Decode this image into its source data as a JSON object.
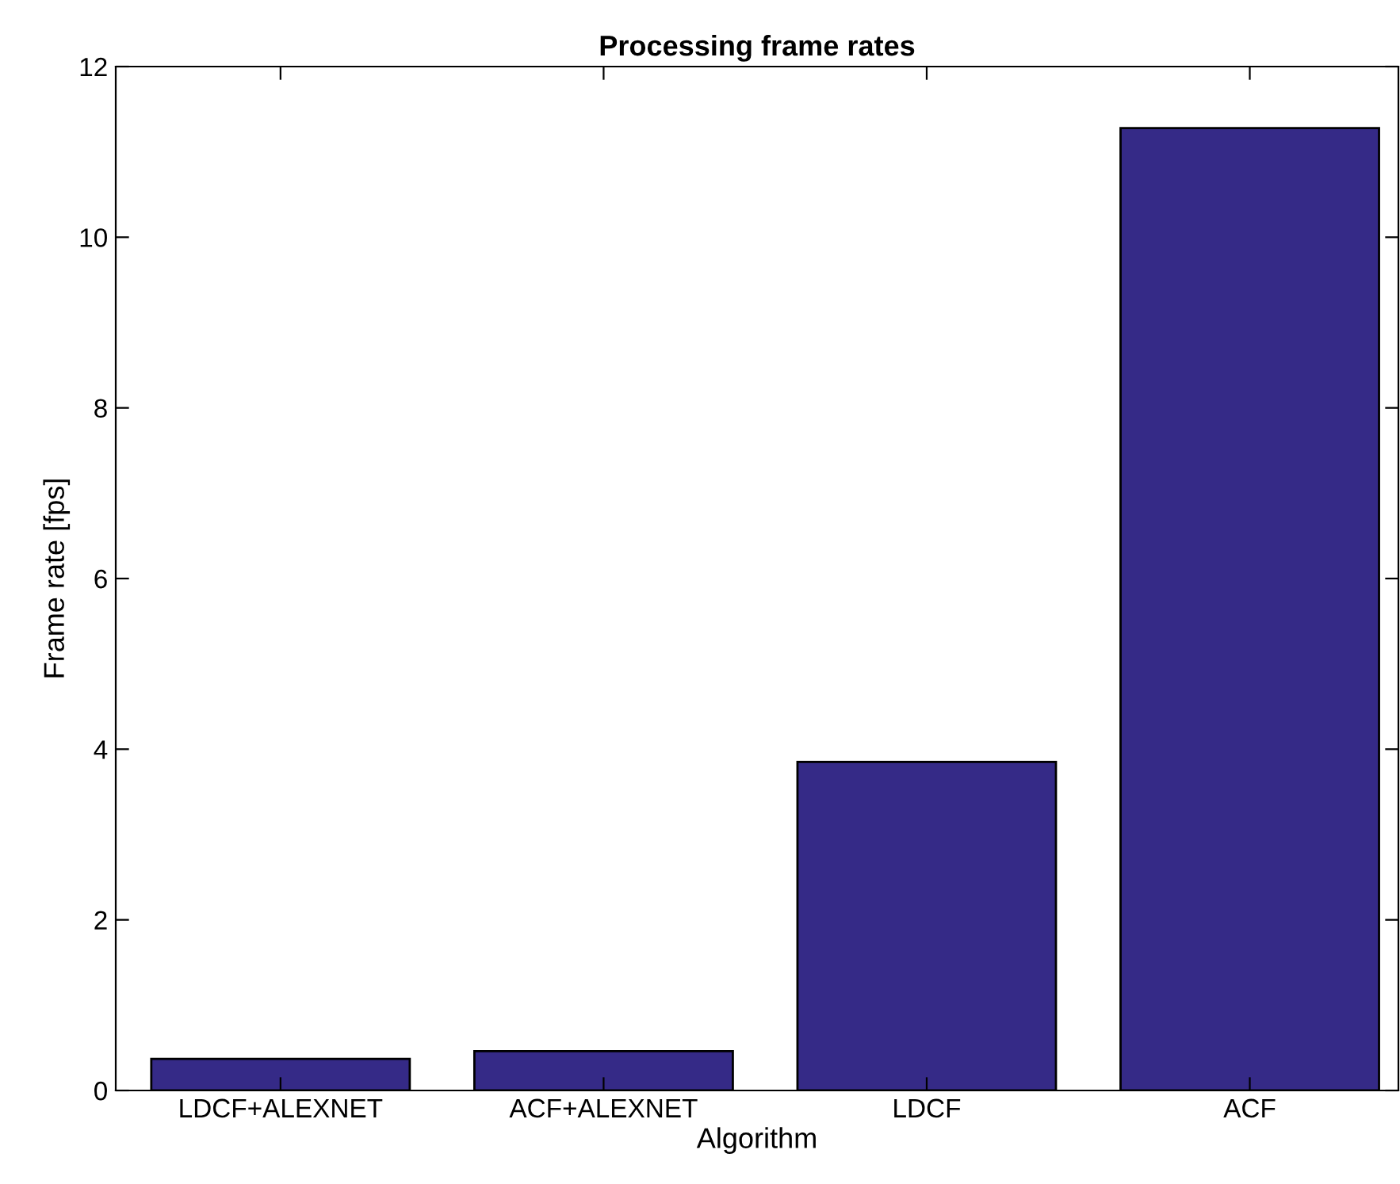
{
  "chart_data": {
    "type": "bar",
    "title": "Processing frame rates",
    "xlabel": "Algorithm",
    "ylabel": "Frame rate [fps]",
    "categories": [
      "LDCF+ALEXNET",
      "ACF+ALEXNET",
      "LDCF",
      "ACF"
    ],
    "values": [
      0.37,
      0.46,
      3.85,
      11.28
    ],
    "color": "#352a87",
    "ylim": [
      0,
      12
    ],
    "yticks": [
      0,
      2,
      4,
      6,
      8,
      10,
      12
    ],
    "grid": false
  }
}
